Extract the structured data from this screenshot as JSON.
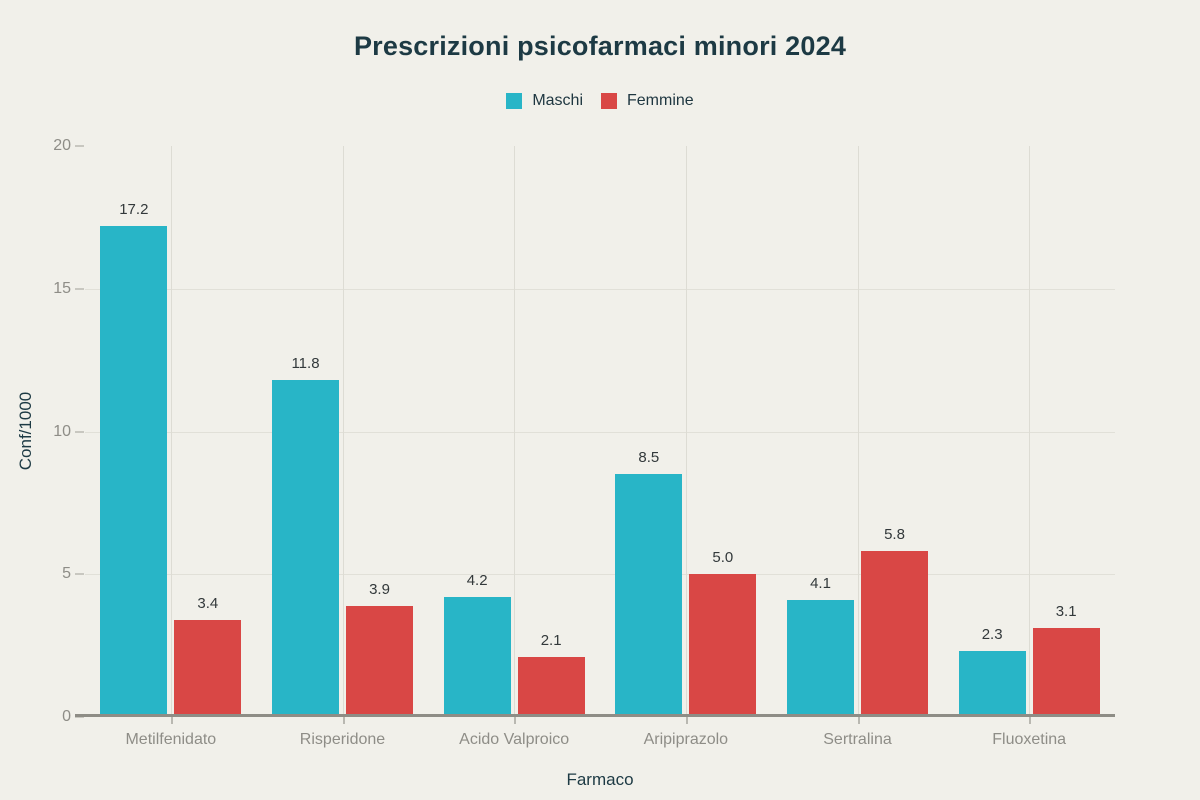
{
  "colors": {
    "background": "#f1f0ea",
    "maschi": "#28b5c7",
    "femmine": "#d94745",
    "title_text": "#1d3a44",
    "tick_text": "#8e8d87",
    "value_text": "#33393b",
    "axis_line": "#8e8d86",
    "gridline": "#e1e0d8"
  },
  "chart_data": {
    "type": "bar",
    "title": "Prescrizioni psicofarmaci minori 2024",
    "xlabel": "Farmaco",
    "ylabel": "Conf/1000",
    "categories": [
      "Metilfenidato",
      "Risperidone",
      "Acido Valproico",
      "Aripiprazolo",
      "Sertralina",
      "Fluoxetina"
    ],
    "series": [
      {
        "name": "Maschi",
        "color": "#28b5c7",
        "values": [
          17.2,
          11.8,
          4.2,
          8.5,
          4.1,
          2.3
        ]
      },
      {
        "name": "Femmine",
        "color": "#d94745",
        "values": [
          3.4,
          3.9,
          2.1,
          5.0,
          5.8,
          3.1
        ]
      }
    ],
    "ylim": [
      0,
      20
    ],
    "yticks": [
      0,
      5,
      10,
      15,
      20
    ],
    "grid_horizontal": [
      5,
      10,
      15
    ],
    "grid_vertical": "category-centers",
    "legend_position": "top-center",
    "value_labels": true,
    "value_label_decimals": 1
  }
}
